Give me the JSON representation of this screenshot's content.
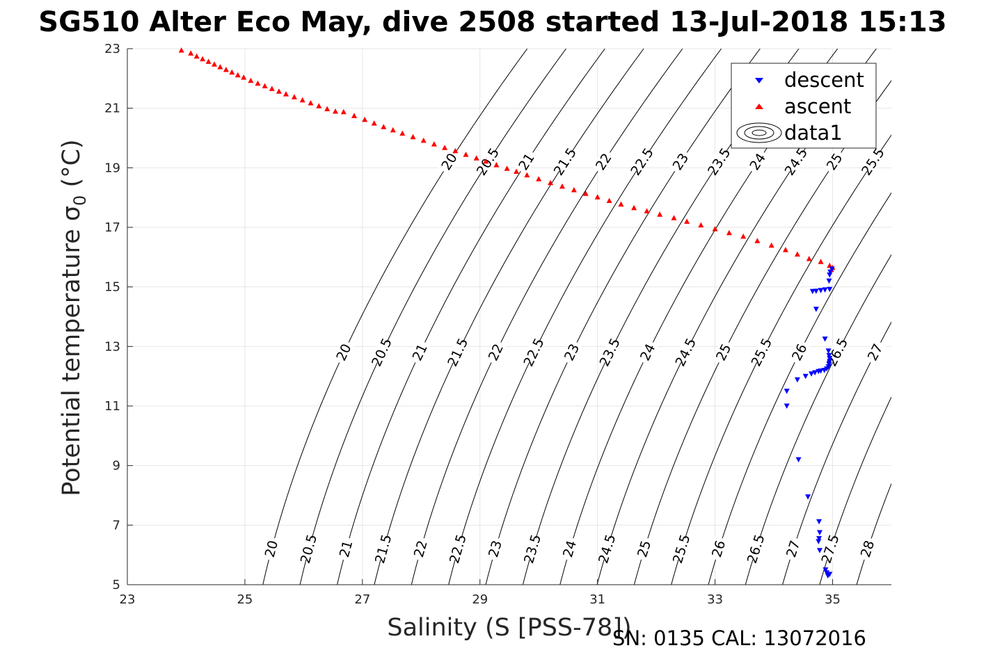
{
  "chart_data": {
    "type": "scatter",
    "title": "SG510 Alter Eco May, dive 2508 started 13-Jul-2018 15:13",
    "xlabel": "Salinity (S [PSS-78])",
    "ylabel_main": "Potential temperature σ",
    "ylabel_sub": "0",
    "ylabel_unit": " (°C)",
    "xlim": [
      23,
      36
    ],
    "ylim": [
      5,
      23
    ],
    "xticks": [
      23,
      25,
      27,
      29,
      31,
      33,
      35
    ],
    "yticks": [
      5,
      7,
      9,
      11,
      13,
      15,
      17,
      19,
      21,
      23
    ],
    "grid": true,
    "legend_position": "top-right",
    "legend": [
      "descent",
      "ascent",
      "data1"
    ],
    "colors": {
      "descent": "#0000ff",
      "ascent": "#ff0000",
      "contour": "#000000",
      "grid": "#e6e6e6"
    },
    "footer": "SN: 0135  CAL: 13072016",
    "series": [
      {
        "name": "descent",
        "marker": "triangle-down",
        "points": [
          [
            34.92,
            5.3
          ],
          [
            34.95,
            5.35
          ],
          [
            34.9,
            5.4
          ],
          [
            34.88,
            5.5
          ],
          [
            34.78,
            6.15
          ],
          [
            34.76,
            6.45
          ],
          [
            34.77,
            6.55
          ],
          [
            34.78,
            6.75
          ],
          [
            34.77,
            7.12
          ],
          [
            34.58,
            7.95
          ],
          [
            34.42,
            9.2
          ],
          [
            34.22,
            11.0
          ],
          [
            34.22,
            11.5
          ],
          [
            34.4,
            11.88
          ],
          [
            34.54,
            12.0
          ],
          [
            34.64,
            12.08
          ],
          [
            34.7,
            12.12
          ],
          [
            34.76,
            12.16
          ],
          [
            34.8,
            12.18
          ],
          [
            34.86,
            12.2
          ],
          [
            34.9,
            12.25
          ],
          [
            34.93,
            12.32
          ],
          [
            34.94,
            12.4
          ],
          [
            34.95,
            12.5
          ],
          [
            34.95,
            12.6
          ],
          [
            34.94,
            12.7
          ],
          [
            34.93,
            12.85
          ],
          [
            34.87,
            13.25
          ],
          [
            34.72,
            14.25
          ],
          [
            34.66,
            14.85
          ],
          [
            34.72,
            14.86
          ],
          [
            34.8,
            14.88
          ],
          [
            34.87,
            14.9
          ],
          [
            34.95,
            14.92
          ],
          [
            34.94,
            15.2
          ],
          [
            34.95,
            15.4
          ],
          [
            34.96,
            15.5
          ],
          [
            34.99,
            15.6
          ]
        ]
      },
      {
        "name": "ascent",
        "marker": "triangle-up",
        "points": [
          [
            23.92,
            22.95
          ],
          [
            24.08,
            22.85
          ],
          [
            24.18,
            22.75
          ],
          [
            24.28,
            22.66
          ],
          [
            24.38,
            22.57
          ],
          [
            24.48,
            22.48
          ],
          [
            24.58,
            22.39
          ],
          [
            24.68,
            22.3
          ],
          [
            24.78,
            22.21
          ],
          [
            24.88,
            22.12
          ],
          [
            24.98,
            22.04
          ],
          [
            25.1,
            21.93
          ],
          [
            25.22,
            21.84
          ],
          [
            25.34,
            21.75
          ],
          [
            25.46,
            21.66
          ],
          [
            25.58,
            21.57
          ],
          [
            25.7,
            21.48
          ],
          [
            25.84,
            21.38
          ],
          [
            25.98,
            21.28
          ],
          [
            26.12,
            21.18
          ],
          [
            26.26,
            21.08
          ],
          [
            26.4,
            20.98
          ],
          [
            26.54,
            20.9
          ],
          [
            26.68,
            20.88
          ],
          [
            26.86,
            20.75
          ],
          [
            27.04,
            20.62
          ],
          [
            27.2,
            20.5
          ],
          [
            27.36,
            20.38
          ],
          [
            27.52,
            20.27
          ],
          [
            27.68,
            20.16
          ],
          [
            27.86,
            20.04
          ],
          [
            28.04,
            19.92
          ],
          [
            28.22,
            19.8
          ],
          [
            28.4,
            19.68
          ],
          [
            28.58,
            19.57
          ],
          [
            28.76,
            19.45
          ],
          [
            28.94,
            19.33
          ],
          [
            29.1,
            19.22
          ],
          [
            29.28,
            19.1
          ],
          [
            29.46,
            18.98
          ],
          [
            29.62,
            18.88
          ],
          [
            29.8,
            18.76
          ],
          [
            30.0,
            18.63
          ],
          [
            30.2,
            18.5
          ],
          [
            30.4,
            18.38
          ],
          [
            30.6,
            18.26
          ],
          [
            30.8,
            18.14
          ],
          [
            31.0,
            18.02
          ],
          [
            31.2,
            17.9
          ],
          [
            31.4,
            17.78
          ],
          [
            31.62,
            17.66
          ],
          [
            31.84,
            17.55
          ],
          [
            32.06,
            17.44
          ],
          [
            32.3,
            17.32
          ],
          [
            32.52,
            17.2
          ],
          [
            32.76,
            17.08
          ],
          [
            33.0,
            16.95
          ],
          [
            33.24,
            16.82
          ],
          [
            33.48,
            16.7
          ],
          [
            33.72,
            16.55
          ],
          [
            33.96,
            16.4
          ],
          [
            34.2,
            16.25
          ],
          [
            34.4,
            16.1
          ],
          [
            34.6,
            15.95
          ],
          [
            34.8,
            15.85
          ],
          [
            34.95,
            15.72
          ],
          [
            35.0,
            15.65
          ],
          [
            34.98,
            15.58
          ]
        ]
      }
    ],
    "contours": {
      "name": "data1",
      "variable": "sigma_0",
      "levels": [
        20,
        20.5,
        21,
        21.5,
        22,
        22.5,
        23,
        23.5,
        24,
        24.5,
        25,
        25.5,
        26,
        26.5,
        27,
        27.5,
        28
      ],
      "level_labels": [
        "20",
        "20.5",
        "21",
        "21.5",
        "22",
        "22.5",
        "23",
        "23.5",
        "24",
        "24.5",
        "25",
        "25.5",
        "26",
        "26.5",
        "27",
        "27.5",
        "28"
      ],
      "label_rows": [
        {
          "levels": [
            20,
            20.5,
            21,
            21.5,
            22,
            22.5,
            23,
            23.5,
            24,
            24.5,
            25,
            25.5
          ],
          "temperature": 19.2
        },
        {
          "levels": [
            20,
            20.5,
            21,
            21.5,
            22,
            22.5,
            23,
            23.5,
            24,
            24.5,
            25,
            25.5,
            26,
            26.5,
            27
          ],
          "temperature": 12.8
        },
        {
          "levels": [
            20,
            20.5,
            21,
            21.5,
            22,
            22.5,
            23,
            23.5,
            24,
            24.5,
            25,
            25.5,
            26,
            26.5,
            27,
            27.5,
            28
          ],
          "temperature": 6.2
        }
      ]
    }
  }
}
